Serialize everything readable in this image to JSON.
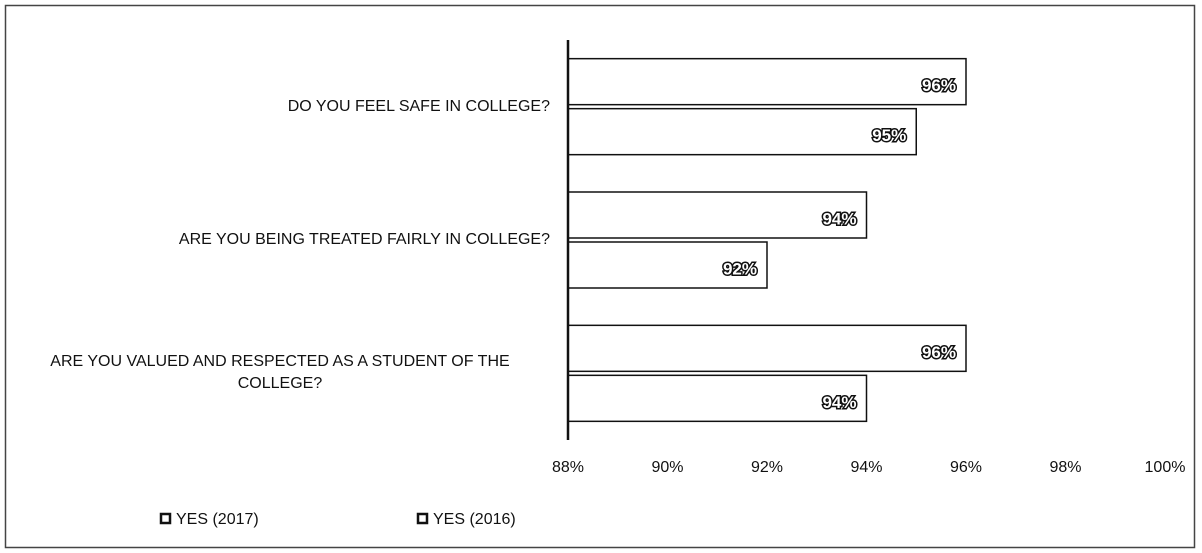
{
  "chart_data": {
    "type": "barh",
    "categories": [
      "DO YOU FEEL SAFE IN COLLEGE?",
      "ARE YOU BEING TREATED FAIRLY IN COLLEGE?",
      "ARE YOU VALUED AND RESPECTED AS A STUDENT OF THE COLLEGE?"
    ],
    "series": [
      {
        "name": "YES (2017)",
        "color": "#ffffff",
        "values": [
          96,
          94,
          96
        ],
        "value_labels": [
          "96%",
          "94%",
          "96%"
        ]
      },
      {
        "name": "YES (2016)",
        "color": "#ffffff",
        "values": [
          95,
          92,
          94
        ],
        "value_labels": [
          "95%",
          "92%",
          "94%"
        ]
      }
    ],
    "xlim": [
      88,
      100
    ],
    "xticks": [
      {
        "value": 88,
        "label": "88%"
      },
      {
        "value": 90,
        "label": "90%"
      },
      {
        "value": 92,
        "label": "92%"
      },
      {
        "value": 94,
        "label": "94%"
      },
      {
        "value": 96,
        "label": "96%"
      },
      {
        "value": 98,
        "label": "98%"
      },
      {
        "value": 100,
        "label": "100%"
      }
    ],
    "grid": false,
    "legend": "bottom"
  }
}
